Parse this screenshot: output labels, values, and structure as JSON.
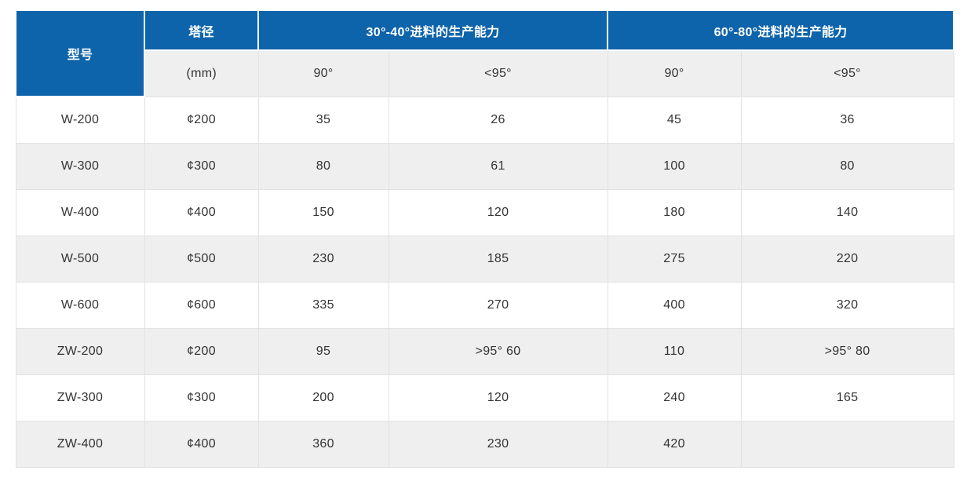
{
  "theme": {
    "header_blue": "#0d64ab",
    "header_text_color": "#ffffff",
    "body_text_color": "#333333",
    "row_bg": "#ffffff",
    "row_alt_bg": "#efefef",
    "border_color": "#e2e2e2"
  },
  "table": {
    "header": {
      "model_label": "型号",
      "diameter_label": "塔径",
      "diameter_unit": "(mm)",
      "group1_label": "30°-40°进料的生产能力",
      "group2_label": "60°-80°进料的生产能力",
      "sub1": "90°",
      "sub2": "<95°",
      "sub3": "90°",
      "sub4": "<95°"
    },
    "rows": [
      {
        "model": "W-200",
        "diameter": "¢200",
        "values": [
          "35",
          "26",
          "45",
          "36"
        ]
      },
      {
        "model": "W-300",
        "diameter": "¢300",
        "values": [
          "80",
          "61",
          "100",
          "80"
        ]
      },
      {
        "model": "W-400",
        "diameter": "¢400",
        "values": [
          "150",
          "120",
          "180",
          "140"
        ]
      },
      {
        "model": "W-500",
        "diameter": "¢500",
        "values": [
          "230",
          "185",
          "275",
          "220"
        ]
      },
      {
        "model": "W-600",
        "diameter": "¢600",
        "values": [
          "335",
          "270",
          "400",
          "320"
        ]
      },
      {
        "model": "ZW-200",
        "diameter": "¢200",
        "values": [
          "95",
          ">95° 60",
          "110",
          ">95° 80"
        ]
      },
      {
        "model": "ZW-300",
        "diameter": "¢300",
        "values": [
          "200",
          "120",
          "240",
          "165"
        ]
      },
      {
        "model": "ZW-400",
        "diameter": "¢400",
        "values": [
          "360",
          "230",
          "420",
          ""
        ]
      }
    ]
  }
}
